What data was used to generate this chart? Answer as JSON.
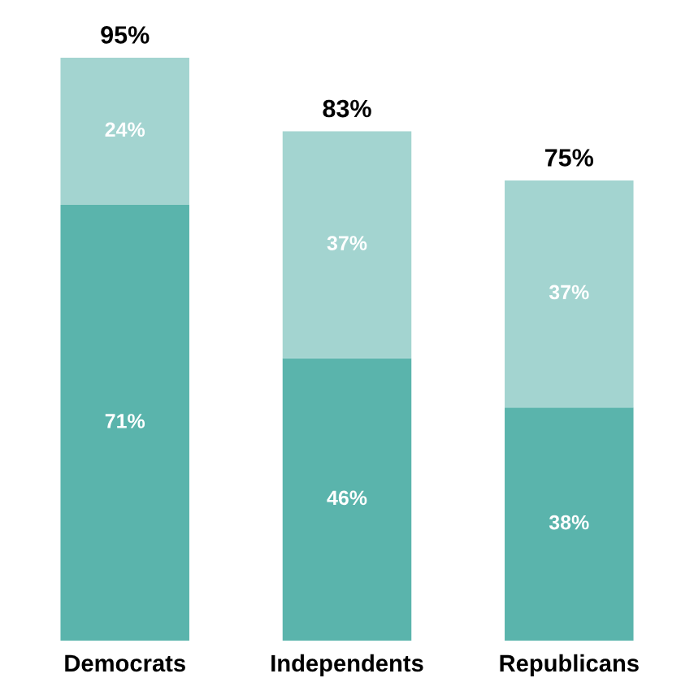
{
  "chart_data": {
    "type": "bar",
    "stacked": true,
    "categories": [
      "Democrats",
      "Independents",
      "Republicans"
    ],
    "series": [
      {
        "color": "#5ab4ac",
        "values": [
          71,
          46,
          38
        ],
        "value_labels": [
          "71%",
          "46%",
          "38%"
        ]
      },
      {
        "color": "#a3d4d0",
        "values": [
          24,
          37,
          37
        ],
        "value_labels": [
          "24%",
          "37%",
          "37%"
        ]
      }
    ],
    "totals": [
      "95%",
      "83%",
      "75%"
    ]
  }
}
